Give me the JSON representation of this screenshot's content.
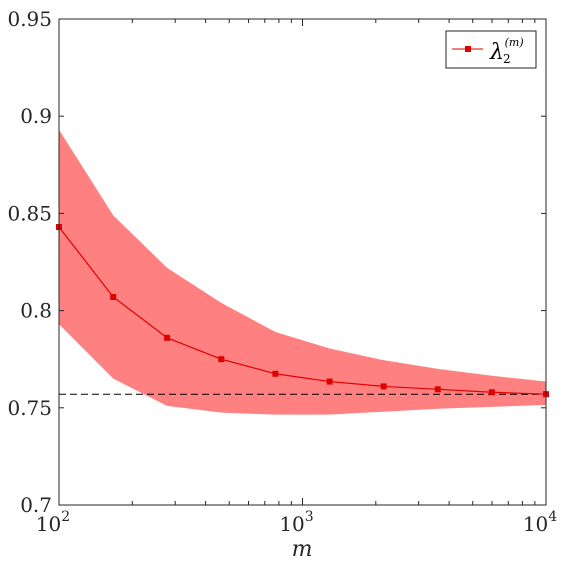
{
  "chart_data": {
    "type": "line",
    "x_scale": "log",
    "xlim": [
      100,
      10000
    ],
    "ylim": [
      0.7,
      0.95
    ],
    "xlabel": "m",
    "ylabel": "",
    "x_ticks": [
      {
        "value": 100,
        "base": "10",
        "exp": "2"
      },
      {
        "value": 1000,
        "base": "10",
        "exp": "3"
      },
      {
        "value": 10000,
        "base": "10",
        "exp": "4"
      }
    ],
    "y_ticks": [
      {
        "value": 0.7,
        "label": "0.7"
      },
      {
        "value": 0.75,
        "label": "0.75"
      },
      {
        "value": 0.8,
        "label": "0.8"
      },
      {
        "value": 0.85,
        "label": "0.85"
      },
      {
        "value": 0.9,
        "label": "0.9"
      },
      {
        "value": 0.95,
        "label": "0.95"
      }
    ],
    "grid": false,
    "legend_position": "top-right",
    "series": [
      {
        "name": "λ2(m)",
        "legend": {
          "symbol": "λ",
          "sub": "2",
          "sup": "(m)"
        },
        "color": "#e00000",
        "marker": "square",
        "x": [
          100,
          167,
          278,
          464,
          774,
          1292,
          2154,
          3594,
          5995,
          10000
        ],
        "y": [
          0.843,
          0.807,
          0.786,
          0.775,
          0.7675,
          0.7635,
          0.761,
          0.7595,
          0.758,
          0.757
        ]
      }
    ],
    "band": {
      "color": "#ff8080",
      "x": [
        100,
        167,
        278,
        464,
        774,
        1292,
        2154,
        3594,
        5995,
        10000
      ],
      "upper": [
        0.893,
        0.849,
        0.822,
        0.804,
        0.789,
        0.7805,
        0.7745,
        0.77,
        0.7665,
        0.7635
      ],
      "lower": [
        0.793,
        0.765,
        0.751,
        0.7475,
        0.7465,
        0.7465,
        0.748,
        0.7495,
        0.7505,
        0.7515
      ]
    },
    "reference_line": {
      "y": 0.757,
      "style": "dashed",
      "color": "#000000"
    }
  }
}
